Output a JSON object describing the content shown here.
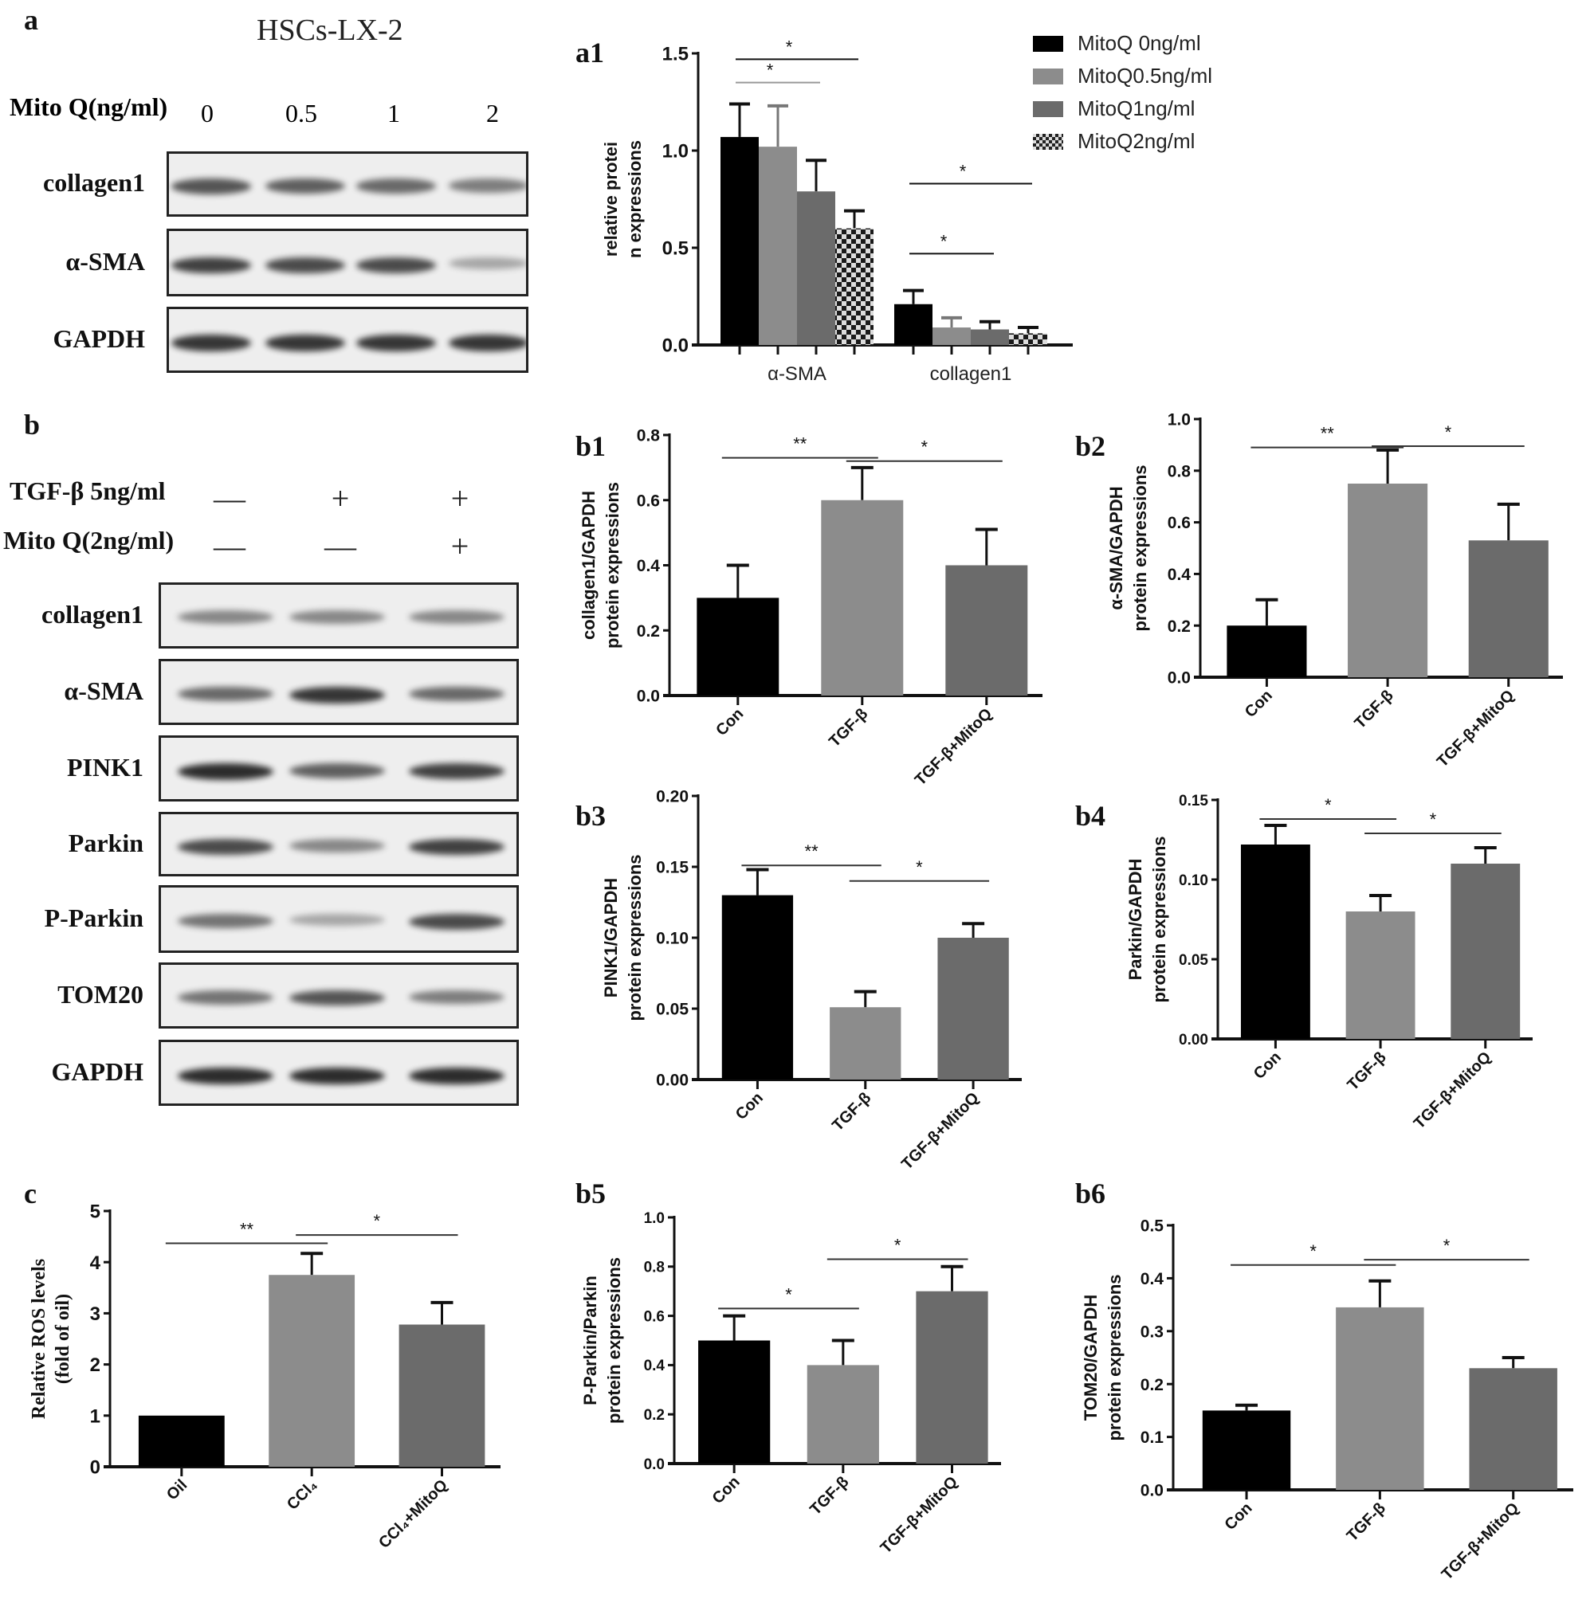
{
  "panel_a": {
    "label": "a",
    "title": "HSCs-LX-2",
    "dose_label": "Mito Q(ng/ml)",
    "doses": [
      "0",
      "0.5",
      "1",
      "2"
    ],
    "blots": [
      "collagen1",
      "α-SMA",
      "GAPDH"
    ]
  },
  "panel_b": {
    "label": "b",
    "conditions": [
      {
        "label": "TGF-β 5ng/ml",
        "signs": [
          "—",
          "+",
          "+"
        ]
      },
      {
        "label": "Mito Q(2ng/ml)",
        "signs": [
          "—",
          "—",
          "+"
        ]
      }
    ],
    "blots": [
      "collagen1",
      "α-SMA",
      "PINK1",
      "Parkin",
      "P-Parkin",
      "TOM20",
      "GAPDH"
    ]
  },
  "colors": {
    "black": "#000000",
    "light_gray": "#8c8c8c",
    "dark_gray": "#6b6b6b"
  },
  "chart_data": [
    {
      "id": "a1",
      "panel_label": "a1",
      "type": "bar",
      "ylabel": [
        "relative protei",
        "n expressions"
      ],
      "categories": [
        "α-SMA",
        "collagen1"
      ],
      "ylim": [
        0,
        1.5
      ],
      "yticks": [
        "0.0",
        "0.5",
        "1.0",
        "1.5"
      ],
      "ytick_values": [
        0,
        0.5,
        1.0,
        1.5
      ],
      "legend_position": "top-right",
      "series": [
        {
          "name": "MitoQ 0ng/ml",
          "values": [
            1.07,
            0.21
          ],
          "errors": [
            0.17,
            0.07
          ],
          "color": "#000000"
        },
        {
          "name": "MitoQ0.5ng/ml",
          "values": [
            1.02,
            0.09
          ],
          "errors": [
            0.21,
            0.05
          ],
          "color": "#8c8c8c"
        },
        {
          "name": "MitoQ1ng/ml",
          "values": [
            0.79,
            0.08
          ],
          "errors": [
            0.16,
            0.04
          ],
          "color": "#6b6b6b"
        },
        {
          "name": "MitoQ2ng/ml",
          "values": [
            0.6,
            0.06
          ],
          "errors": [
            0.09,
            0.03
          ],
          "color": "checkered"
        }
      ],
      "significance": [
        {
          "group": 0,
          "from": 0,
          "to": 3,
          "y": 1.47,
          "label": "*"
        },
        {
          "group": 0,
          "from": 0,
          "to": 2,
          "y": 1.35,
          "label": "*"
        },
        {
          "group": 1,
          "from": 0,
          "to": 3,
          "y": 0.83,
          "label": "*"
        },
        {
          "group": 1,
          "from": 0,
          "to": 2,
          "y": 0.47,
          "label": "*"
        }
      ]
    },
    {
      "id": "b1",
      "panel_label": "b1",
      "type": "bar",
      "ylabel": [
        "collagen1/GAPDH",
        "protein expressions"
      ],
      "categories": [
        "Con",
        "TGF-β",
        "TGF-β+MitoQ"
      ],
      "values": [
        0.3,
        0.6,
        0.4
      ],
      "errors": [
        0.1,
        0.1,
        0.11
      ],
      "ylim": [
        0,
        0.8
      ],
      "yticks": [
        "0.0",
        "0.2",
        "0.4",
        "0.6",
        "0.8"
      ],
      "ytick_values": [
        0,
        0.2,
        0.4,
        0.6,
        0.8
      ],
      "significance": [
        {
          "from": 0,
          "to": 1,
          "y": 0.73,
          "label": "**"
        },
        {
          "from": 1,
          "to": 2,
          "y": 0.72,
          "label": "*"
        }
      ]
    },
    {
      "id": "b2",
      "panel_label": "b2",
      "type": "bar",
      "ylabel": [
        "α-SMA/GAPDH",
        "protein expressions"
      ],
      "categories": [
        "Con",
        "TGF-β",
        "TGF-β+MitoQ"
      ],
      "values": [
        0.2,
        0.75,
        0.53
      ],
      "errors": [
        0.1,
        0.13,
        0.14
      ],
      "ylim": [
        0,
        1.0
      ],
      "yticks": [
        "0.0",
        "0.2",
        "0.4",
        "0.6",
        "0.8",
        "1.0"
      ],
      "ytick_values": [
        0,
        0.2,
        0.4,
        0.6,
        0.8,
        1.0
      ],
      "significance": [
        {
          "from": 0,
          "to": 1,
          "y": 0.89,
          "label": "**"
        },
        {
          "from": 1,
          "to": 2,
          "y": 0.895,
          "label": "*"
        }
      ]
    },
    {
      "id": "b3",
      "panel_label": "b3",
      "type": "bar",
      "ylabel": [
        "PINK1/GAPDH",
        "protein expressions"
      ],
      "categories": [
        "Con",
        "TGF-β",
        "TGF-β+MitoQ"
      ],
      "values": [
        0.13,
        0.051,
        0.1
      ],
      "errors": [
        0.018,
        0.011,
        0.01
      ],
      "ylim": [
        0,
        0.2
      ],
      "yticks": [
        "0.00",
        "0.05",
        "0.10",
        "0.15",
        "0.20"
      ],
      "ytick_values": [
        0,
        0.05,
        0.1,
        0.15,
        0.2
      ],
      "significance": [
        {
          "from": 0,
          "to": 1,
          "y": 0.151,
          "label": "**"
        },
        {
          "from": 1,
          "to": 2,
          "y": 0.14,
          "label": "*"
        }
      ]
    },
    {
      "id": "b4",
      "panel_label": "b4",
      "type": "bar",
      "ylabel": [
        "Parkin/GAPDH",
        "protein expressions"
      ],
      "categories": [
        "Con",
        "TGF-β",
        "TGF-β+MitoQ"
      ],
      "values": [
        0.122,
        0.08,
        0.11
      ],
      "errors": [
        0.012,
        0.01,
        0.01
      ],
      "ylim": [
        0,
        0.15
      ],
      "yticks": [
        "0.00",
        "0.05",
        "0.10",
        "0.15"
      ],
      "ytick_values": [
        0,
        0.05,
        0.1,
        0.15
      ],
      "significance": [
        {
          "from": 0,
          "to": 1,
          "y": 0.138,
          "label": "*"
        },
        {
          "from": 1,
          "to": 2,
          "y": 0.129,
          "label": "*"
        }
      ]
    },
    {
      "id": "c",
      "panel_label": "c",
      "type": "bar",
      "ylabel": [
        "Relative ROS levels",
        "(fold of oil)"
      ],
      "categories": [
        "Oil",
        "CCl₄",
        "CCl₄+MitoQ"
      ],
      "values": [
        1.0,
        3.75,
        2.78
      ],
      "errors": [
        0,
        0.42,
        0.43
      ],
      "ylim": [
        0,
        5
      ],
      "yticks": [
        "0",
        "1",
        "2",
        "3",
        "4",
        "5"
      ],
      "ytick_values": [
        0,
        1,
        2,
        3,
        4,
        5
      ],
      "significance": [
        {
          "from": 0,
          "to": 1,
          "y": 4.37,
          "label": "**"
        },
        {
          "from": 1,
          "to": 2,
          "y": 4.53,
          "label": "*"
        }
      ]
    },
    {
      "id": "b5",
      "panel_label": "b5",
      "type": "bar",
      "ylabel": [
        "P-Parkin/Parkin",
        "protein expressions"
      ],
      "categories": [
        "Con",
        "TGF-β",
        "TGF-β+MitoQ"
      ],
      "values": [
        0.5,
        0.4,
        0.7
      ],
      "errors": [
        0.1,
        0.1,
        0.1
      ],
      "ylim": [
        0,
        1.0
      ],
      "yticks": [
        "0.0",
        "0.2",
        "0.4",
        "0.6",
        "0.8",
        "1.0"
      ],
      "ytick_values": [
        0,
        0.2,
        0.4,
        0.6,
        0.8,
        1.0
      ],
      "significance": [
        {
          "from": 0,
          "to": 1,
          "y": 0.63,
          "label": "*"
        },
        {
          "from": 1,
          "to": 2,
          "y": 0.83,
          "label": "*"
        }
      ]
    },
    {
      "id": "b6",
      "panel_label": "b6",
      "type": "bar",
      "ylabel": [
        "TOM20/GAPDH",
        "protein expressions"
      ],
      "categories": [
        "Con",
        "TGF-β",
        "TGF-β+MitoQ"
      ],
      "values": [
        0.15,
        0.345,
        0.23
      ],
      "errors": [
        0.01,
        0.05,
        0.02
      ],
      "ylim": [
        0,
        0.5
      ],
      "yticks": [
        "0.0",
        "0.1",
        "0.2",
        "0.3",
        "0.4",
        "0.5"
      ],
      "ytick_values": [
        0,
        0.1,
        0.2,
        0.3,
        0.4,
        0.5
      ],
      "significance": [
        {
          "from": 0,
          "to": 1,
          "y": 0.425,
          "label": "*"
        },
        {
          "from": 1,
          "to": 2,
          "y": 0.435,
          "label": "*"
        }
      ]
    }
  ]
}
